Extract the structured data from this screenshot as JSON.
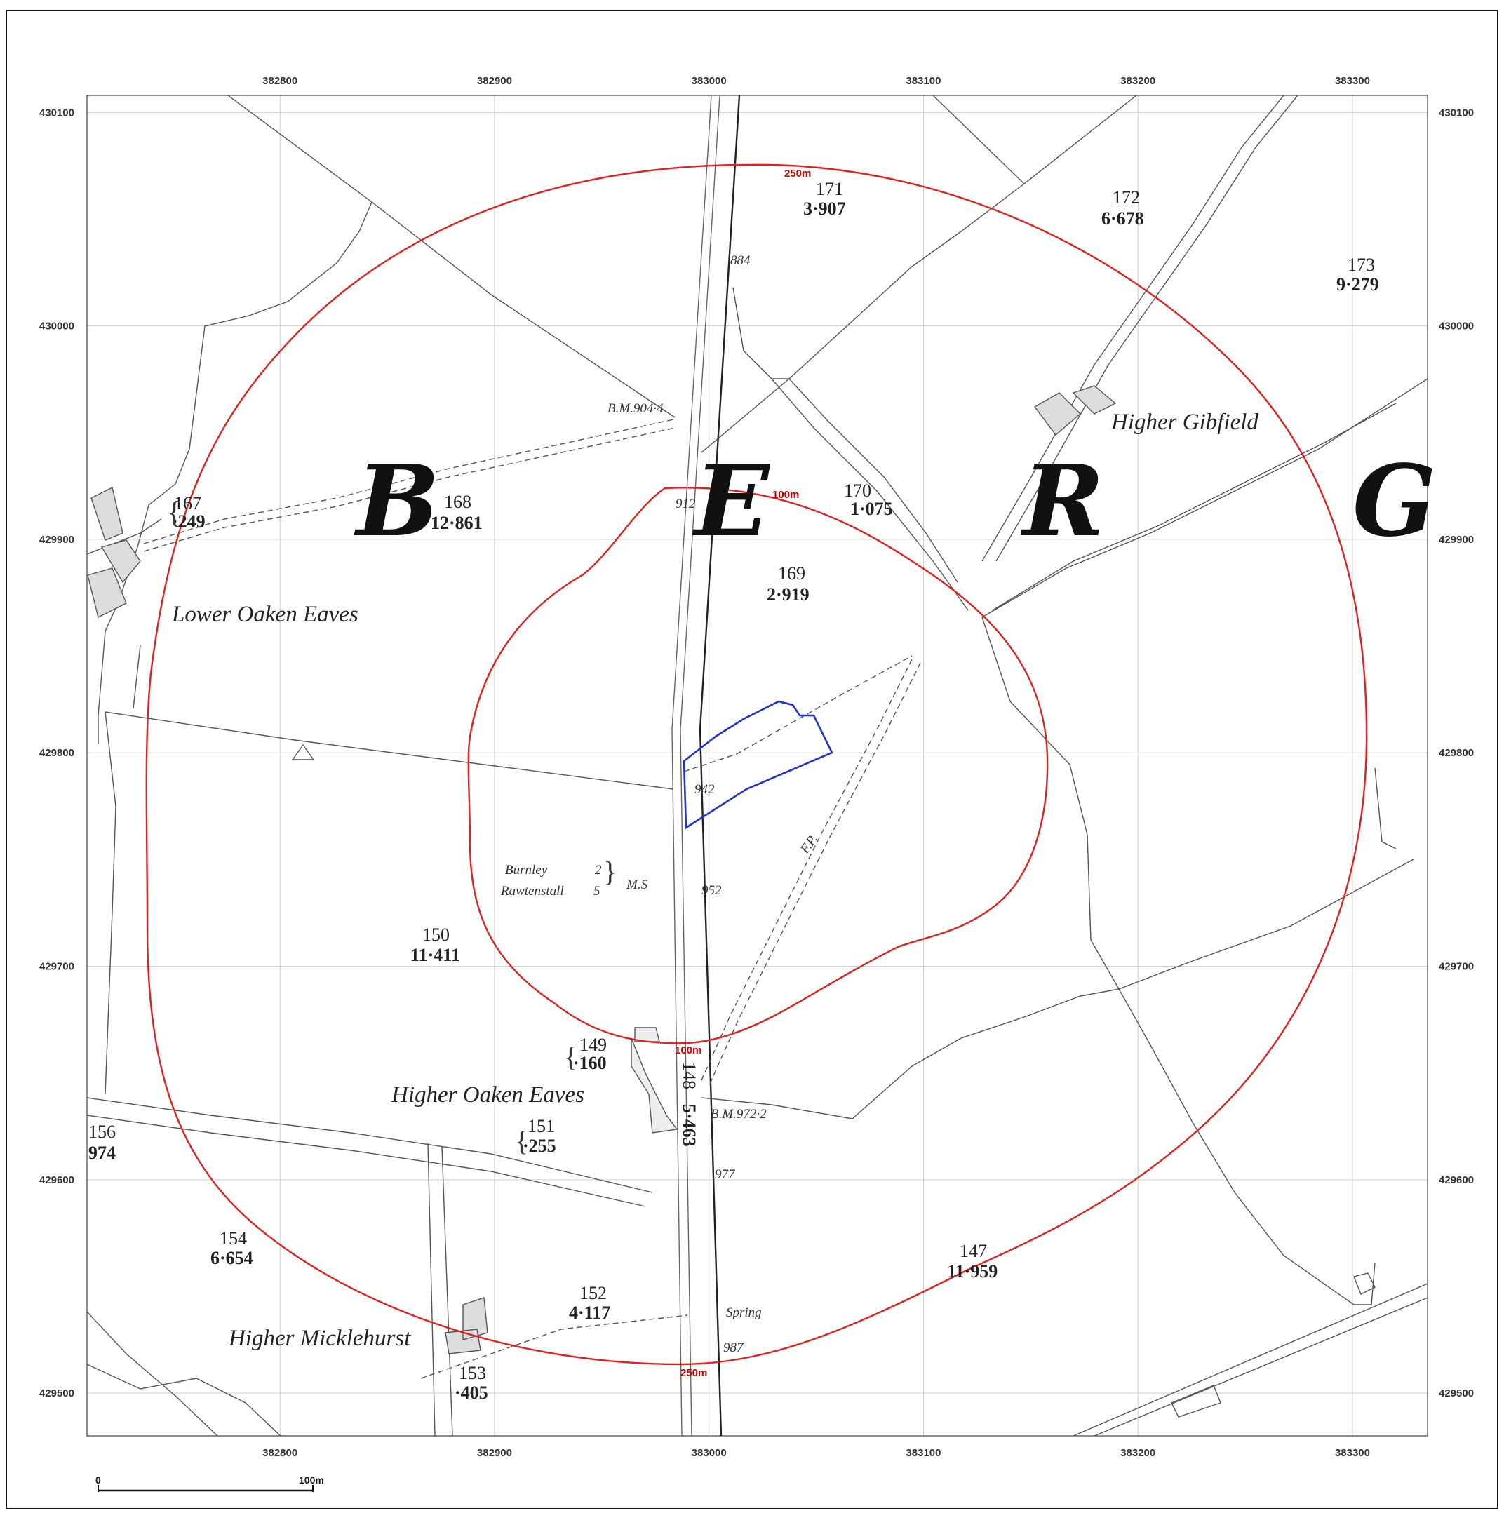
{
  "map": {
    "x_ticks": [
      "382800",
      "382900",
      "383000",
      "383100",
      "383200",
      "383300"
    ],
    "y_ticks": [
      "430100",
      "430000",
      "429900",
      "429800",
      "429700",
      "429600",
      "429500"
    ],
    "x_range": [
      382710,
      383335
    ],
    "y_range": [
      429480,
      430108
    ],
    "buffers": [
      {
        "label": "100m",
        "color": "#dd2222"
      },
      {
        "label": "250m",
        "color": "#dd2222"
      }
    ],
    "site_boundary_color": "#2233cc",
    "parish_letters": [
      "B",
      "E",
      "R",
      "G"
    ],
    "place_names": {
      "lower_oaken_eaves": "Lower Oaken Eaves",
      "higher_oaken_eaves": "Higher Oaken Eaves",
      "higher_gibfield": "Higher Gibfield",
      "higher_micklehurst": "Higher Micklehurst"
    },
    "parcels": [
      {
        "num": "171",
        "area": "3·907"
      },
      {
        "num": "172",
        "area": "6·678"
      },
      {
        "num": "173",
        "area": "9·279"
      },
      {
        "num": "167",
        "area": "·249"
      },
      {
        "num": "168",
        "area": "12·861"
      },
      {
        "num": "170",
        "area": "1·075"
      },
      {
        "num": "169",
        "area": "2·919"
      },
      {
        "num": "150",
        "area": "11·411"
      },
      {
        "num": "149",
        "area": "·160"
      },
      {
        "num": "148",
        "area": "5·463"
      },
      {
        "num": "156",
        "area": "974"
      },
      {
        "num": "151",
        "area": "·255"
      },
      {
        "num": "154",
        "area": "6·654"
      },
      {
        "num": "147",
        "area": "11·959"
      },
      {
        "num": "152",
        "area": "4·117"
      },
      {
        "num": "153",
        "area": "·405"
      }
    ],
    "annotations": {
      "bm_904": "B.M.904·4",
      "bm_972": "B.M.972·2",
      "h884": "884",
      "h912": "912",
      "h942": "942",
      "h952": "952",
      "h977": "977",
      "h987": "987",
      "fp": "F.P.",
      "spring": "Spring",
      "burnley": "Burnley",
      "burnley_n": "2",
      "rawtenstall": "Rawtenstall",
      "rawtenstall_n": "5",
      "ms": "M.S"
    },
    "scale_bar": {
      "start": "0",
      "end": "100m"
    }
  }
}
